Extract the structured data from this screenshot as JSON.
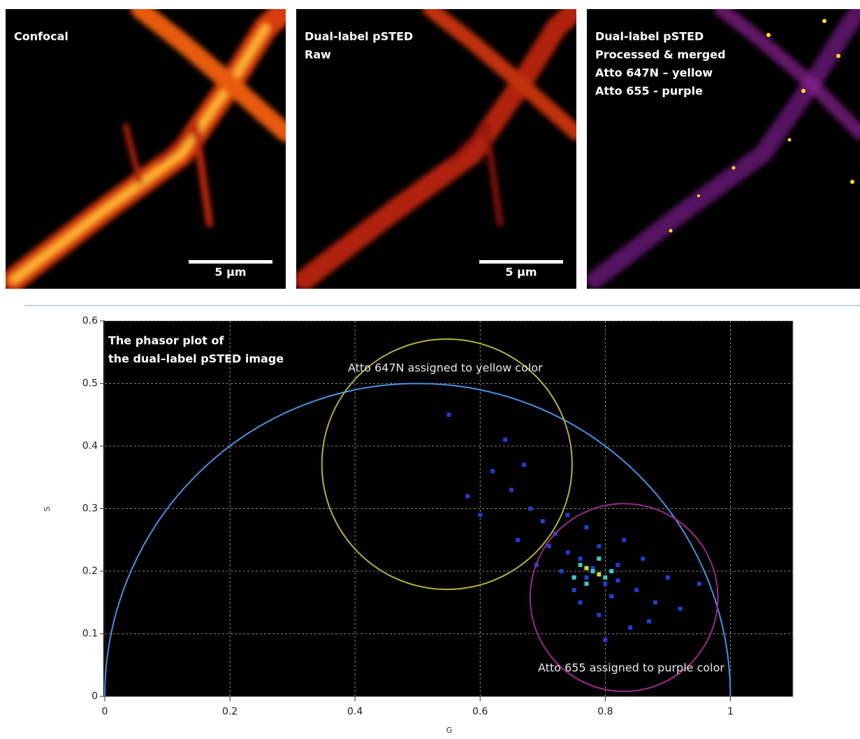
{
  "panels": [
    {
      "lines": [
        "Confocal"
      ],
      "scale_bar": "5 µm"
    },
    {
      "lines": [
        "Dual-label pSTED",
        "Raw"
      ],
      "scale_bar": "5 µm"
    },
    {
      "lines": [
        "Dual-label pSTED",
        "Processed & merged",
        "Atto 647N – yellow",
        "Atto 655 - purple"
      ]
    }
  ],
  "chart_data": {
    "type": "phasor",
    "annotation": [
      "The phasor plot of",
      "the dual–label pSTED image"
    ],
    "x_label": "G",
    "y_label": "S",
    "xlim": [
      0,
      1.1
    ],
    "ylim": [
      0,
      0.6
    ],
    "xticks": [
      0,
      0.2,
      0.4,
      0.6,
      0.8,
      1
    ],
    "yticks": [
      0,
      0.1,
      0.2,
      0.3,
      0.4,
      0.5,
      0.6
    ],
    "grid": true,
    "universal_circle": {
      "center": [
        0.5,
        0
      ],
      "radius": 0.5,
      "color": "#4a90e2"
    },
    "circles": [
      {
        "label": "Atto 647N assigned to yellow color",
        "color": "#b5b03a",
        "center": [
          0.547,
          0.371
        ],
        "radius": 0.2
      },
      {
        "label": "Atto 655 assigned to purple color",
        "color": "#9a2a8a",
        "center": [
          0.83,
          0.158
        ],
        "radius": 0.15
      }
    ],
    "points": [
      {
        "color": "#1f3fd0",
        "x": [
          0.78,
          0.76,
          0.8,
          0.82,
          0.77,
          0.79,
          0.74,
          0.72,
          0.85,
          0.88,
          0.7,
          0.68,
          0.75,
          0.81,
          0.83,
          0.79,
          0.77,
          0.86,
          0.9,
          0.73,
          0.71,
          0.65,
          0.62,
          0.6,
          0.58,
          0.55,
          0.67,
          0.64,
          0.92,
          0.95,
          0.84,
          0.8,
          0.76,
          0.69,
          0.66,
          0.78,
          0.82,
          0.87,
          0.74,
          0.79
        ],
        "y": [
          0.2,
          0.22,
          0.18,
          0.21,
          0.19,
          0.24,
          0.23,
          0.26,
          0.17,
          0.15,
          0.28,
          0.3,
          0.17,
          0.16,
          0.25,
          0.13,
          0.27,
          0.22,
          0.19,
          0.2,
          0.24,
          0.33,
          0.36,
          0.29,
          0.32,
          0.45,
          0.37,
          0.41,
          0.14,
          0.18,
          0.11,
          0.09,
          0.15,
          0.21,
          0.25,
          0.205,
          0.185,
          0.12,
          0.29,
          0.22
        ]
      },
      {
        "color": "#3ec8c0",
        "x": [
          0.76,
          0.78,
          0.8,
          0.77,
          0.79,
          0.81,
          0.75
        ],
        "y": [
          0.21,
          0.2,
          0.19,
          0.18,
          0.22,
          0.2,
          0.19
        ]
      },
      {
        "color": "#c8e040",
        "x": [
          0.77,
          0.79
        ],
        "y": [
          0.205,
          0.195
        ]
      }
    ]
  }
}
